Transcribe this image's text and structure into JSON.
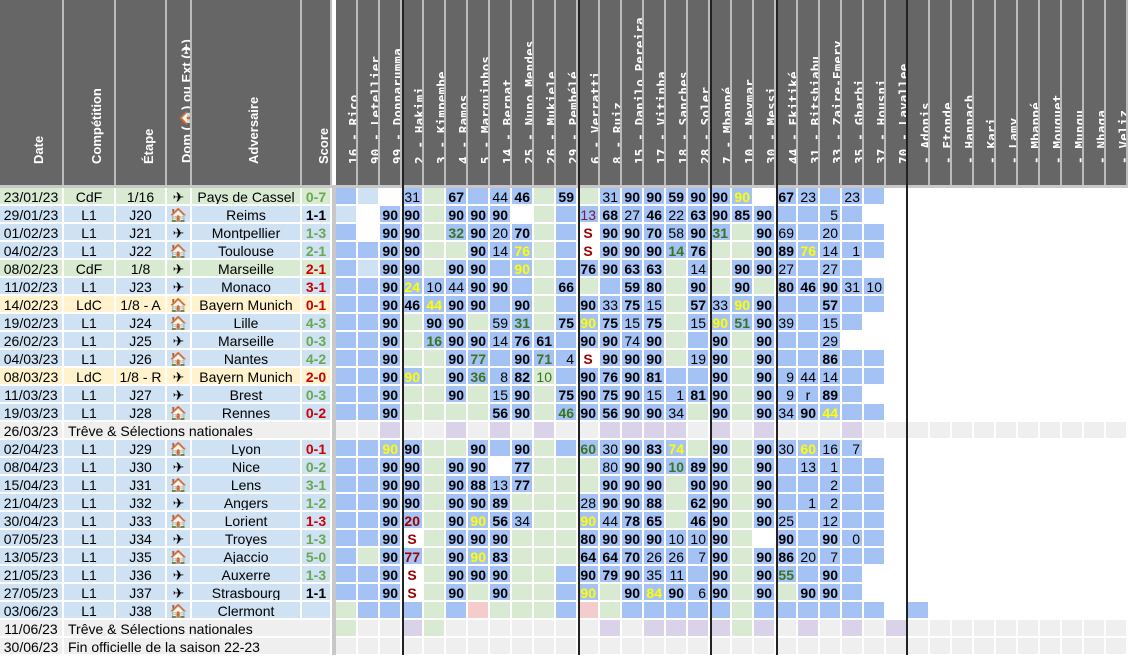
{
  "headers": {
    "date": "Date",
    "competition": "Compétition",
    "stage": "Étape",
    "venue": "Dom (🏠) ou Ext (✈)",
    "opponent": "Adversaire",
    "score": "Score"
  },
  "players": [
    "16 - Rico",
    "90 - Letellier",
    "99 - Donnarumma",
    "2 - Hakimi",
    "3 - Kimpembe",
    "4 - Ramos",
    "5 - Marquinhos",
    "14 - Bernat",
    "25 - Nuno Mendes",
    "26 - Mukiele",
    "29 - Pembélé",
    "6 - Verratti",
    "8 - Ruiz",
    "15 - Danilo Pereira",
    "17 - Vitinha",
    "18 - Sanches",
    "28 - Soler",
    "7 - Mbappé",
    "10 - Neymar",
    "30 - Messi",
    "44 - Ekitiké",
    "31 - Bitshiabu",
    "33 - Zaire-Emery",
    "35 - Gharbi",
    "37 - Housni",
    "70 - Lavallee",
    "- Adonis",
    "- Etonde",
    "- Hannach",
    "- Kari",
    "- Lamy",
    "- Mbappé",
    "- Mouquet",
    "- Mungu",
    "- Nhaga",
    "- Veliz"
  ],
  "colors": {
    "header_bg": "#666666",
    "row_blue": "#cfe2f3",
    "row_green": "#d9ead3",
    "row_yellow": "#fff2cc",
    "row_grey": "#efefef",
    "cell_blue": "#a4c2f4",
    "cell_lightblue": "#cfe2f3",
    "cell_green": "#d9ead3",
    "cell_purple": "#d9d2e9",
    "cell_pink": "#f4cccc",
    "win": "#6aa84f",
    "loss": "#cc0000",
    "draw": "#000000",
    "yellow_text": "#ffff00",
    "green_text": "#38761d",
    "red_text": "#990000"
  },
  "rows": [
    {
      "date": "23/01/23",
      "comp": "CdF",
      "stage": "1/16",
      "venue": "away",
      "opponent": "Pays de Cassel",
      "score": "0-7",
      "result": "win",
      "bg": "green",
      "cells": "B L W 31 G 67* B 44 46* G 59* G 31 90* 90* 59* 90* 90* 90y W 67* 23 B 23 B"
    },
    {
      "date": "29/01/23",
      "comp": "L1",
      "stage": "J20",
      "venue": "home",
      "opponent": "Reims",
      "score": "1-1",
      "result": "draw",
      "bg": "blue",
      "cells": "L W 90* 90* G 90* 90* 90* W G B 13r 68* 27 46* 22 63* 90* 85* 90* B B 5 B"
    },
    {
      "date": "01/02/23",
      "comp": "L1",
      "stage": "J21",
      "venue": "away",
      "opponent": "Montpellier",
      "score": "1-3",
      "result": "win",
      "bg": "blue",
      "cells": "B W 90* 90* G 32g 90* 20 70* G B S 90* 90* 70* 58 90* 31g G 90* 69 B 20 B B"
    },
    {
      "date": "04/02/23",
      "comp": "L1",
      "stage": "J22",
      "venue": "home",
      "opponent": "Toulouse",
      "score": "2-1",
      "result": "win",
      "bg": "blue",
      "cells": "B B 90* 90* G G 90* 14 76y G B S 90* 90* 90* 14g 76* G G 90* 89* 76y 14 1 B"
    },
    {
      "date": "08/02/23",
      "comp": "CdF",
      "stage": "1/8",
      "venue": "away",
      "opponent": "Marseille",
      "score": "2-1",
      "result": "loss",
      "bg": "green",
      "cells": "B L 90* 90* G 90* 90* B 90y G B 76* 90* 63* 63* G 14 G 90* 90* 27 B 27 B"
    },
    {
      "date": "11/02/23",
      "comp": "L1",
      "stage": "J23",
      "venue": "away",
      "opponent": "Monaco",
      "score": "3-1",
      "result": "loss",
      "bg": "blue",
      "cells": "B B 90* 24y 10 44 90* 90* B G 66* G B 59* 80* G 90* G 90* G 80* 46* 90* 31 10"
    },
    {
      "date": "14/02/23",
      "comp": "LdC",
      "stage": "1/8 - A",
      "venue": "home",
      "opponent": "Bayern Munich",
      "score": "0-1",
      "result": "loss",
      "bg": "yellow",
      "cells": "B B 90* 46* 44y 90* 90* B 90* G B 90* 33 75* 15 G 57* 33 90y 90* B B 57* B B"
    },
    {
      "date": "19/02/23",
      "comp": "L1",
      "stage": "J24",
      "venue": "home",
      "opponent": "Lille",
      "score": "4-3",
      "result": "win",
      "bg": "blue",
      "cells": "B B 90* G 90* 90* G 59 31g G 75* 90y 75* 15 75* G 15 90y 51g 90* 39 B 15 B"
    },
    {
      "date": "26/02/23",
      "comp": "L1",
      "stage": "J25",
      "venue": "away",
      "opponent": "Marseille",
      "score": "0-3",
      "result": "win",
      "bg": "blue",
      "cells": "B B 90* G 16g 90* 90* 14 76* 61* B 90* 90* 74 90* G B 90* G 90* B B 29"
    },
    {
      "date": "04/03/23",
      "comp": "L1",
      "stage": "J26",
      "venue": "home",
      "opponent": "Nantes",
      "score": "4-2",
      "result": "win",
      "bg": "blue",
      "cells": "B B 90* G G 90* 77g B 90* 71g 4 S 90* 90* 90* G 19 90* G 90* B B 86* B B"
    },
    {
      "date": "08/03/23",
      "comp": "LdC",
      "stage": "1/8 - R",
      "venue": "away",
      "opponent": "Bayern Munich",
      "score": "2-0",
      "result": "loss",
      "bg": "yellow",
      "cells": "B B 90* 90y G 90* 36g 8 82* 10gl B 90* 76* 90* 81* B B 90* G 90* 9 44 14 B B"
    },
    {
      "date": "11/03/23",
      "comp": "L1",
      "stage": "J27",
      "venue": "away",
      "opponent": "Brest",
      "score": "0-3",
      "result": "win",
      "bg": "blue",
      "cells": "B B 90* G G 90* G 15 90* G 75* 90* 75* 90* 15 1 81* 90* G 90* 9 r 89* B"
    },
    {
      "date": "19/03/23",
      "comp": "L1",
      "stage": "J28",
      "venue": "home",
      "opponent": "Rennes",
      "score": "0-2",
      "result": "loss",
      "bg": "blue",
      "cells": "B B 90* G G G G 56* 90* G 46g 90* 56* 90* 90* 34 G 90* G 90* 34 90* 44y B B"
    },
    {
      "date": "26/03/23",
      "break": "Trêve & Sélections nationales",
      "bg": "grey"
    },
    {
      "date": "02/04/23",
      "comp": "L1",
      "stage": "J29",
      "venue": "home",
      "opponent": "Lyon",
      "score": "0-1",
      "result": "loss",
      "bg": "blue",
      "cells": "B B 90y 90* G G 90* B 90* G B 60g 30 90* 83* 74y G 90* G 90* 30 60y 16 7"
    },
    {
      "date": "08/04/23",
      "comp": "L1",
      "stage": "J30",
      "venue": "away",
      "opponent": "Nice",
      "score": "0-2",
      "result": "win",
      "bg": "blue",
      "cells": "B B 90* 90* G 90* 90* W 77* G G G 80 90* 90* 10g 89* 90* G 90* B 13 1 B B"
    },
    {
      "date": "15/04/23",
      "comp": "L1",
      "stage": "J31",
      "venue": "home",
      "opponent": "Lens",
      "score": "3-1",
      "result": "win",
      "bg": "blue",
      "cells": "B B 90* 90* G 90* 88* 13 77* G G G 90* 90* 90* G 90* 90* G 90* B B 2 B B"
    },
    {
      "date": "21/04/23",
      "comp": "L1",
      "stage": "J32",
      "venue": "away",
      "opponent": "Angers",
      "score": "1-2",
      "result": "win",
      "bg": "blue",
      "cells": "B B 90* 90* G 90* 90* 89* G G G 28 90* 90* 88* G 62* 90* G 90* B 1 2 B B"
    },
    {
      "date": "30/04/23",
      "comp": "L1",
      "stage": "J33",
      "venue": "home",
      "opponent": "Lorient",
      "score": "1-3",
      "result": "loss",
      "bg": "blue",
      "cells": "B B 90* 20r* G 90* 90y 56* 34 G G 90y 44 78* 65* G 46* 90* G 90* 25 B 12 B B"
    },
    {
      "date": "07/05/23",
      "comp": "L1",
      "stage": "J34",
      "venue": "away",
      "opponent": "Troyes",
      "score": "1-3",
      "result": "win",
      "bg": "blue",
      "cells": "B B 90* S G 90* 90* 90* G G G 80* 90* 90* 90* 10 10 90* G W 90* B 90* 0 B"
    },
    {
      "date": "13/05/23",
      "comp": "L1",
      "stage": "J35",
      "venue": "home",
      "opponent": "Ajaccio",
      "score": "5-0",
      "result": "win",
      "bg": "blue",
      "cells": "B G 90* 77r* G 90* 90y 83* G G G 64* 64* 70* 26 26 7 90* G 90* 86* 20 7 B B"
    },
    {
      "date": "21/05/23",
      "comp": "L1",
      "stage": "J36",
      "venue": "away",
      "opponent": "Auxerre",
      "score": "1-3",
      "result": "win",
      "bg": "blue",
      "cells": "B B 90* S G 90* 90* 90* G G B 90* 79* 90* 35 11 B 90* G 90* 55g B 90* B"
    },
    {
      "date": "27/05/23",
      "comp": "L1",
      "stage": "J37",
      "venue": "away",
      "opponent": "Strasbourg",
      "score": "1-1",
      "result": "draw",
      "bg": "blue",
      "cells": "B B 90* S G 90* G 90* G G B 90y G 90* 84y 90* 6 90* G 90* G 90* 90* B"
    },
    {
      "date": "03/06/23",
      "comp": "L1",
      "stage": "J38",
      "venue": "home",
      "opponent": "Clermont",
      "score": "",
      "result": "",
      "bg": "blue",
      "cells": "G B B B G B P G G G B P G B B B B B G B B B B B B W B"
    },
    {
      "date": "11/06/23",
      "break": "Trêve & Sélections nationales",
      "bg": "grey"
    },
    {
      "date": "30/06/23",
      "break": "Fin officielle de la saison 22-23",
      "bg": "grey"
    }
  ],
  "sub_label": "S",
  "reserve_label": "r"
}
